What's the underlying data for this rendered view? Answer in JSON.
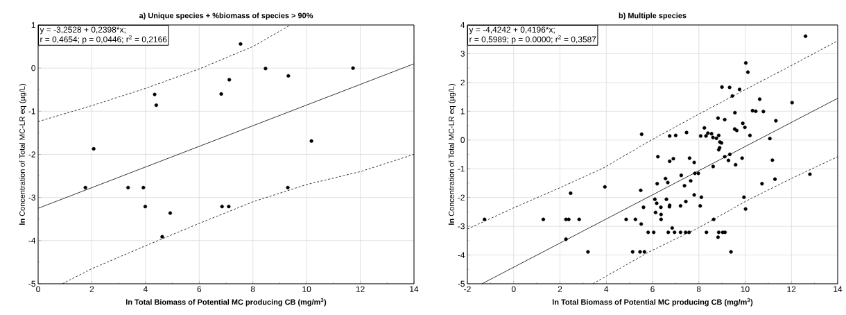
{
  "chart_data": [
    {
      "type": "scatter",
      "title": "a) Unique species + %biomass of species > 90%",
      "xlabel": "ln Total Biomass of Potential MC producing CB (mg/m$^{3}$)",
      "ylabel": "**ln** Concentration of Total MC-LR eq (µg/L)",
      "annotations": [
        "y = -3,2528 + 0,2398*x;",
        "r = 0,4654; p = 0,0446; r$^{2}$ = 0,2166"
      ],
      "xlim": [
        0,
        14
      ],
      "ylim": [
        -5,
        1
      ],
      "xticks": [
        0,
        2,
        4,
        6,
        8,
        10,
        12,
        14
      ],
      "yticks": [
        -5,
        -4,
        -3,
        -2,
        -1,
        0,
        1
      ],
      "grid": true,
      "legend": false,
      "marker": "circle",
      "series": [
        {
          "color": "#000000",
          "x": [
            1.76,
            2.07,
            3.35,
            3.92,
            3.99,
            4.34,
            4.4,
            4.62,
            4.92,
            6.82,
            6.85,
            7.1,
            7.12,
            7.54,
            8.47,
            9.3,
            9.32,
            10.18,
            11.73
          ],
          "values": [
            -2.77,
            -1.87,
            -2.77,
            -2.77,
            -3.21,
            -0.61,
            -0.86,
            -3.91,
            -3.36,
            -0.6,
            -3.21,
            -3.21,
            -0.27,
            0.56,
            -0.01,
            -2.77,
            -0.18,
            -1.69,
            0.0
          ]
        },
        {
          "type": "line",
          "color": "#000000",
          "line_style": "solid",
          "marker": "none",
          "x": [
            0,
            14
          ],
          "values": [
            -3.25,
            0.1
          ]
        },
        {
          "type": "line",
          "color": "#000000",
          "line_style": "dashed",
          "marker": "none",
          "x": [
            0,
            2,
            4,
            6,
            8,
            9.4
          ],
          "values": [
            -1.24,
            -0.87,
            -0.47,
            -0.02,
            0.5,
            1.0
          ]
        },
        {
          "type": "line",
          "color": "#000000",
          "line_style": "dashed",
          "marker": "none",
          "x": [
            0.9,
            2,
            4,
            6,
            8,
            10,
            12,
            14
          ],
          "values": [
            -5.0,
            -4.65,
            -4.12,
            -3.6,
            -3.1,
            -2.7,
            -2.4,
            -2.0
          ]
        }
      ]
    },
    {
      "type": "scatter",
      "title": "b) Multiple species",
      "xlabel": "ln Total Biomass of Potential MC producing CB (mg/m$^{3}$)",
      "ylabel": "**ln** Concentration of Total MC-LR eq (µg/L)",
      "annotations": [
        "y = -4,4242 + 0,4196*x;",
        "r = 0,5989; p = 0.0000; r$^{2}$ = 0,3587"
      ],
      "xlim": [
        -2,
        14
      ],
      "ylim": [
        -5,
        4
      ],
      "xticks": [
        -2,
        0,
        2,
        4,
        6,
        8,
        10,
        12,
        14
      ],
      "yticks": [
        -5,
        -4,
        -3,
        -2,
        -1,
        0,
        1,
        2,
        3,
        4
      ],
      "grid": true,
      "legend": false,
      "marker": "circle",
      "series": [
        {
          "color": "#000000",
          "x": [
            -1.26,
            1.28,
            2.26,
            2.38,
            2.83,
            2.26,
            2.46,
            3.21,
            3.94,
            4.86,
            5.26,
            5.49,
            5.51,
            5.61,
            5.14,
            5.46,
            5.65,
            5.81,
            6.05,
            5.53,
            6.23,
            6.2,
            6.1,
            6.18,
            6.13,
            6.36,
            6.37,
            6.37,
            6.56,
            6.66,
            6.6,
            6.74,
            6.73,
            6.74,
            6.9,
            6.85,
            6.68,
            6.95,
            7.21,
            7.43,
            7.58,
            7.24,
            7.21,
            7.38,
            7.44,
            7.6,
            7.65,
            7.8,
            7.8,
            7.83,
            7.98,
            8.11,
            8.06,
            8.33,
            8.62,
            8.64,
            8.83,
            8.86,
            9.03,
            9.13,
            8.86,
            8.9,
            8.91,
            8.98,
            9.12,
            9.28,
            9.34,
            9.39,
            9.59,
            9.87,
            9.95,
            10.02,
            10.73,
            11.18,
            11.29,
            12.8,
            11.07,
            12.61,
            10.03,
            10.12,
            9.0,
            9.33,
            9.76,
            9.45,
            10.63,
            12.03,
            9.56,
            10.32,
            10.46,
            10.79,
            8.83,
            9.12,
            11.33,
            9.9,
            9.99,
            9.55,
            9.64,
            8.24,
            8.08,
            8.31,
            8.39,
            8.55,
            8.61,
            8.76,
            8.86,
            10.21,
            6.74,
            7.0,
            7.47
          ],
          "values": [
            -2.76,
            -2.76,
            -2.76,
            -2.76,
            -2.76,
            -3.45,
            -1.85,
            -3.89,
            -1.63,
            -2.76,
            -2.76,
            -1.75,
            -2.92,
            -2.34,
            -3.89,
            -3.89,
            -3.89,
            -3.21,
            -3.21,
            0.2,
            -0.58,
            -1.52,
            -2.06,
            -2.2,
            -2.52,
            -2.34,
            -2.59,
            -2.76,
            -1.34,
            -1.48,
            -2.06,
            -2.27,
            -2.32,
            -0.74,
            -0.65,
            -3.06,
            -3.21,
            -3.21,
            -3.21,
            -3.21,
            -3.21,
            -1.23,
            -2.29,
            -1.59,
            -2.14,
            -0.63,
            -1.42,
            -0.78,
            -1.91,
            -1.16,
            -1.16,
            -1.99,
            -2.29,
            -3.21,
            -0.92,
            -2.76,
            -3.38,
            -3.21,
            -3.21,
            -3.21,
            -0.34,
            -0.27,
            -0.07,
            -0.1,
            -0.58,
            -0.71,
            -0.5,
            -3.89,
            -0.86,
            -0.63,
            -1.99,
            -2.4,
            -1.52,
            -0.7,
            -1.36,
            -1.19,
            0.05,
            3.61,
            2.68,
            2.36,
            1.84,
            1.83,
            1.76,
            1.53,
            1.42,
            1.3,
            0.95,
            1.02,
            1.0,
            0.99,
            0.76,
            0.71,
            0.67,
            0.58,
            0.44,
            0.38,
            0.33,
            0.42,
            0.14,
            0.14,
            0.24,
            0.22,
            0.09,
            0.06,
            0.16,
            0.16,
            0.14,
            0.16,
            0.26
          ]
        },
        {
          "type": "line",
          "color": "#000000",
          "line_style": "solid",
          "marker": "none",
          "x": [
            -1.37,
            14
          ],
          "values": [
            -5.0,
            1.45
          ]
        },
        {
          "type": "line",
          "color": "#000000",
          "line_style": "dashed",
          "marker": "none",
          "x": [
            -2,
            0,
            2,
            3.86,
            5.95,
            8,
            10,
            12,
            14
          ],
          "values": [
            -3.1,
            -2.36,
            -1.66,
            -0.98,
            0.0,
            0.9,
            1.75,
            2.59,
            3.45
          ]
        },
        {
          "type": "line",
          "color": "#000000",
          "line_style": "dashed",
          "marker": "none",
          "x": [
            3.42,
            5.83,
            8,
            10,
            12,
            14
          ],
          "values": [
            -5.0,
            -3.9,
            -3.05,
            -2.14,
            -1.34,
            -0.58
          ]
        }
      ]
    }
  ]
}
